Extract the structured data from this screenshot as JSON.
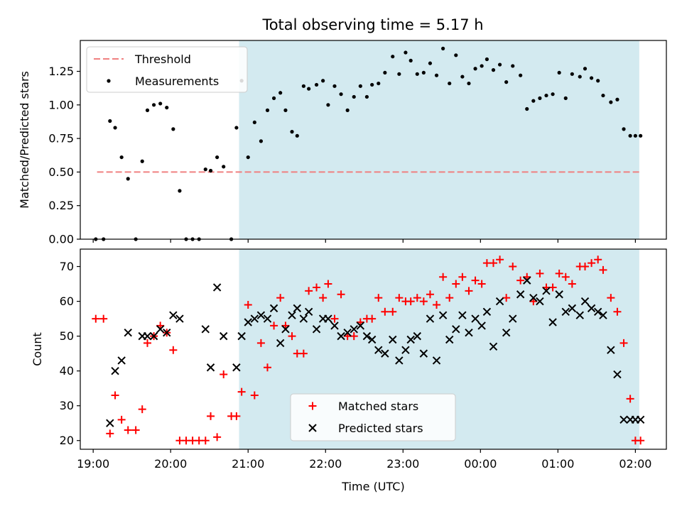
{
  "chart_data": [
    {
      "type": "scatter",
      "title": "Total observing time = 5.17 h",
      "xlabel": "",
      "ylabel": "Matched/Predicted stars",
      "xlim": [
        "18:50",
        "02:24"
      ],
      "ylim": [
        0,
        1.48
      ],
      "yticks": [
        "0.00",
        "0.25",
        "0.50",
        "0.75",
        "1.00",
        "1.25"
      ],
      "shaded_range": [
        "20:53",
        "02:03"
      ],
      "shade_color": "#d3eaf0",
      "grid": false,
      "legend_position": "top-left",
      "threshold": {
        "name": "Threshold",
        "value": 0.5,
        "x_range": [
          "19:03",
          "02:03"
        ],
        "color": "#f08080"
      },
      "series": [
        {
          "name": "Measurements",
          "color": "#000000",
          "x": [
            "19:02",
            "19:08",
            "19:13",
            "19:17",
            "19:22",
            "19:27",
            "19:33",
            "19:38",
            "19:42",
            "19:47",
            "19:52",
            "19:57",
            "20:02",
            "20:07",
            "20:12",
            "20:17",
            "20:22",
            "20:27",
            "20:31",
            "20:36",
            "20:41",
            "20:47",
            "20:51",
            "20:55",
            "21:00",
            "21:05",
            "21:10",
            "21:15",
            "21:20",
            "21:25",
            "21:29",
            "21:34",
            "21:38",
            "21:43",
            "21:47",
            "21:53",
            "21:58",
            "22:02",
            "22:07",
            "22:12",
            "22:17",
            "22:22",
            "22:27",
            "22:32",
            "22:36",
            "22:41",
            "22:46",
            "22:52",
            "22:57",
            "23:02",
            "23:06",
            "23:11",
            "23:16",
            "23:21",
            "23:26",
            "23:31",
            "23:36",
            "23:41",
            "23:46",
            "23:51",
            "23:56",
            "00:01",
            "00:05",
            "00:10",
            "00:15",
            "00:20",
            "00:25",
            "00:31",
            "00:36",
            "00:41",
            "00:46",
            "00:51",
            "00:56",
            "01:01",
            "01:06",
            "01:11",
            "01:17",
            "01:21",
            "01:26",
            "01:31",
            "01:35",
            "01:41",
            "01:46",
            "01:51",
            "01:56",
            "02:00",
            "02:04"
          ],
          "y": [
            0.0,
            0.0,
            0.88,
            0.83,
            0.61,
            0.45,
            0.0,
            0.58,
            0.96,
            1.0,
            1.01,
            0.98,
            0.82,
            0.36,
            0.0,
            0.0,
            0.0,
            0.52,
            0.51,
            0.61,
            0.54,
            0.0,
            0.83,
            1.18,
            0.61,
            0.87,
            0.73,
            0.96,
            1.05,
            1.09,
            0.96,
            0.8,
            0.77,
            1.14,
            1.12,
            1.15,
            1.18,
            1.0,
            1.14,
            1.08,
            0.96,
            1.06,
            1.14,
            1.06,
            1.15,
            1.16,
            1.24,
            1.36,
            1.23,
            1.39,
            1.33,
            1.23,
            1.24,
            1.31,
            1.22,
            1.42,
            1.16,
            1.37,
            1.21,
            1.16,
            1.27,
            1.29,
            1.34,
            1.26,
            1.3,
            1.17,
            1.29,
            1.22,
            0.97,
            1.03,
            1.05,
            1.07,
            1.08,
            1.24,
            1.05,
            1.23,
            1.21,
            1.27,
            1.2,
            1.18,
            1.07,
            1.02,
            1.04,
            0.82,
            0.77,
            0.77,
            0.77
          ]
        }
      ]
    },
    {
      "type": "scatter",
      "title": "",
      "xlabel": "Time (UTC)",
      "ylabel": "Count",
      "xlim": [
        "18:50",
        "02:24"
      ],
      "ylim": [
        17.5,
        75
      ],
      "yticks": [
        "20",
        "30",
        "40",
        "50",
        "60",
        "70"
      ],
      "xticks": [
        "19:00",
        "20:00",
        "21:00",
        "22:00",
        "23:00",
        "00:00",
        "01:00",
        "02:00"
      ],
      "shaded_range": [
        "20:53",
        "02:03"
      ],
      "shade_color": "#d3eaf0",
      "grid": false,
      "legend_position": "bottom-center",
      "series": [
        {
          "name": "Matched stars",
          "marker": "+",
          "color": "#ff0000",
          "x": [
            "19:02",
            "19:08",
            "19:13",
            "19:17",
            "19:22",
            "19:27",
            "19:33",
            "19:38",
            "19:42",
            "19:47",
            "19:52",
            "19:57",
            "20:02",
            "20:07",
            "20:12",
            "20:17",
            "20:22",
            "20:27",
            "20:31",
            "20:36",
            "20:41",
            "20:47",
            "20:51",
            "20:55",
            "21:00",
            "21:05",
            "21:10",
            "21:15",
            "21:20",
            "21:25",
            "21:29",
            "21:34",
            "21:38",
            "21:43",
            "21:47",
            "21:53",
            "21:58",
            "22:02",
            "22:07",
            "22:12",
            "22:17",
            "22:22",
            "22:27",
            "22:32",
            "22:36",
            "22:41",
            "22:46",
            "22:52",
            "22:57",
            "23:02",
            "23:06",
            "23:11",
            "23:16",
            "23:21",
            "23:26",
            "23:31",
            "23:36",
            "23:41",
            "23:46",
            "23:51",
            "23:56",
            "00:01",
            "00:05",
            "00:10",
            "00:15",
            "00:20",
            "00:25",
            "00:31",
            "00:36",
            "00:41",
            "00:46",
            "00:51",
            "00:56",
            "01:01",
            "01:06",
            "01:11",
            "01:17",
            "01:21",
            "01:26",
            "01:31",
            "01:35",
            "01:41",
            "01:46",
            "01:51",
            "01:56",
            "02:00",
            "02:04"
          ],
          "y": [
            55,
            55,
            22,
            33,
            26,
            23,
            23,
            29,
            48,
            50,
            53,
            51,
            46,
            20,
            20,
            20,
            20,
            20,
            27,
            21,
            39,
            27,
            27,
            34,
            59,
            33,
            48,
            41,
            53,
            61,
            53,
            50,
            45,
            45,
            63,
            64,
            61,
            65,
            55,
            62,
            50,
            50,
            54,
            55,
            55,
            61,
            57,
            57,
            61,
            60,
            60,
            61,
            60,
            62,
            59,
            67,
            61,
            65,
            67,
            63,
            66,
            65,
            71,
            71,
            72,
            61,
            70,
            66,
            67,
            60,
            68,
            64,
            64,
            68,
            67,
            65,
            70,
            70,
            71,
            72,
            69,
            61,
            57,
            48,
            32,
            20,
            20
          ]
        },
        {
          "name": "Predicted stars",
          "marker": "x",
          "color": "#000000",
          "x": [
            "19:13",
            "19:17",
            "19:22",
            "19:27",
            "19:38",
            "19:42",
            "19:47",
            "19:52",
            "19:57",
            "20:02",
            "20:07",
            "20:27",
            "20:31",
            "20:36",
            "20:41",
            "20:51",
            "20:55",
            "21:00",
            "21:05",
            "21:10",
            "21:15",
            "21:20",
            "21:25",
            "21:29",
            "21:34",
            "21:38",
            "21:43",
            "21:47",
            "21:53",
            "21:58",
            "22:02",
            "22:07",
            "22:12",
            "22:17",
            "22:22",
            "22:27",
            "22:32",
            "22:36",
            "22:41",
            "22:46",
            "22:52",
            "22:57",
            "23:02",
            "23:06",
            "23:11",
            "23:16",
            "23:21",
            "23:26",
            "23:31",
            "23:36",
            "23:41",
            "23:46",
            "23:51",
            "23:56",
            "00:01",
            "00:05",
            "00:10",
            "00:15",
            "00:20",
            "00:25",
            "00:31",
            "00:36",
            "00:41",
            "00:46",
            "00:51",
            "00:56",
            "01:01",
            "01:06",
            "01:11",
            "01:17",
            "01:21",
            "01:26",
            "01:31",
            "01:35",
            "01:41",
            "01:46",
            "01:51",
            "01:56",
            "02:00",
            "02:04"
          ],
          "y": [
            25,
            40,
            43,
            51,
            50,
            50,
            50,
            52,
            51,
            56,
            55,
            52,
            41,
            64,
            50,
            41,
            50,
            54,
            55,
            56,
            55,
            58,
            48,
            52,
            56,
            58,
            55,
            57,
            52,
            55,
            55,
            53,
            50,
            51,
            52,
            53,
            50,
            49,
            46,
            45,
            49,
            43,
            46,
            49,
            50,
            45,
            55,
            43,
            56,
            49,
            52,
            56,
            51,
            55,
            53,
            57,
            47,
            60,
            51,
            55,
            62,
            66,
            61,
            60,
            63,
            54,
            62,
            57,
            58,
            56,
            60,
            58,
            57,
            56,
            46,
            39,
            26,
            26,
            26,
            26
          ]
        }
      ]
    }
  ]
}
